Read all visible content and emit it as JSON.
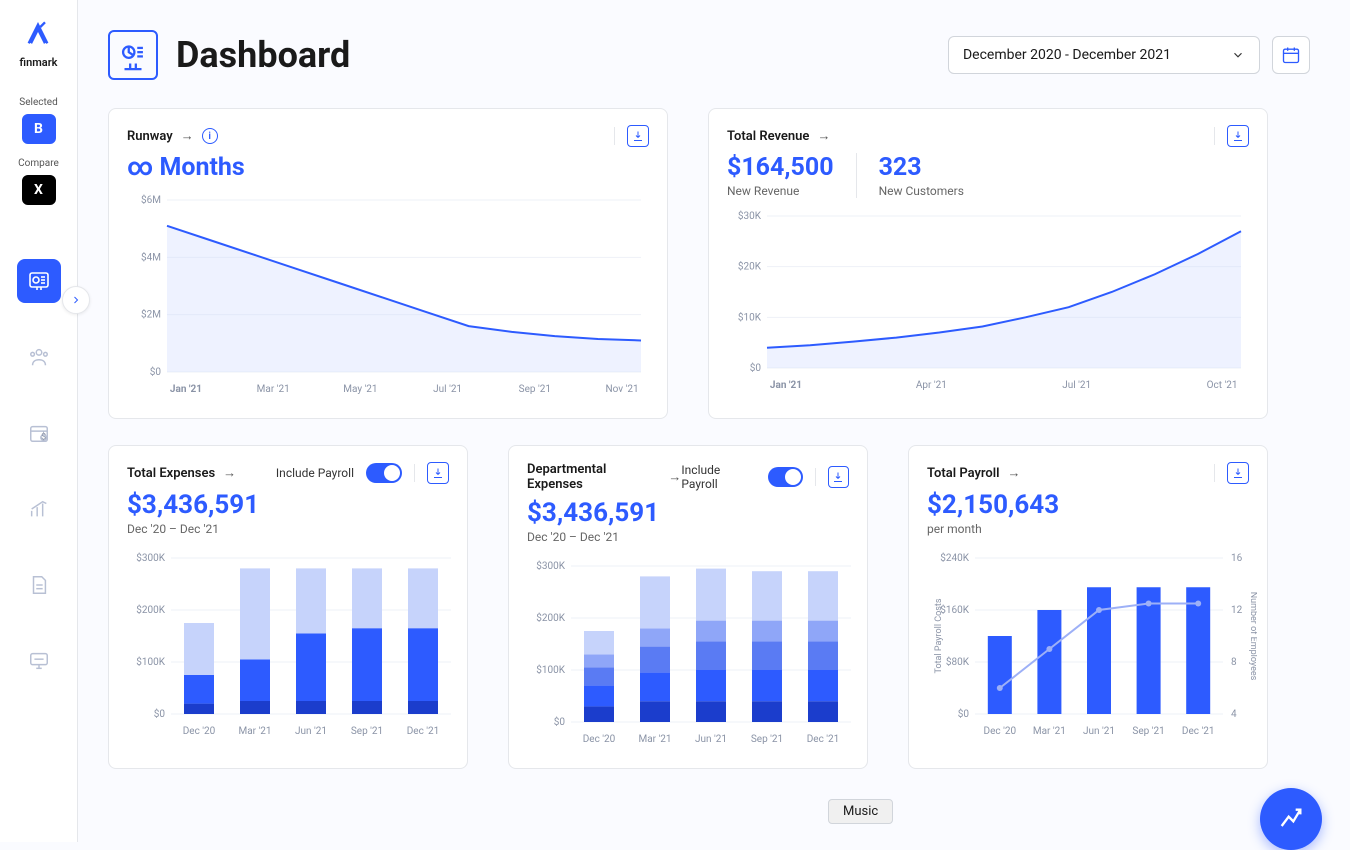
{
  "brand": "finmark",
  "sidebar": {
    "selected_label": "Selected",
    "selected_chip": "B",
    "compare_label": "Compare",
    "compare_chip": "X"
  },
  "header": {
    "title": "Dashboard",
    "date_range": "December 2020 - December 2021"
  },
  "colors": {
    "primary": "#2d5bff",
    "area_fill": "#cfdaff",
    "bar_light": "#c6d3fb",
    "bar_mid": "#7a97f7",
    "bar_dark": "#2d5bff",
    "bar_darker": "#1b3dcc",
    "grid": "#eef1f7",
    "axis_text": "#8a93a6"
  },
  "runway": {
    "title": "Runway",
    "metric": "∞ Months",
    "type": "area",
    "ylim": [
      0,
      6
    ],
    "yticks": [
      "$0",
      "$2M",
      "$4M",
      "$6M"
    ],
    "xticks": [
      "Jan '21",
      "Mar '21",
      "May '21",
      "Jul '21",
      "Sep '21",
      "Nov '21"
    ],
    "values": [
      5.1,
      4.6,
      4.1,
      3.6,
      3.1,
      2.6,
      2.1,
      1.6,
      1.4,
      1.25,
      1.15,
      1.1
    ]
  },
  "revenue": {
    "title": "Total Revenue",
    "new_revenue": "$164,500",
    "new_revenue_label": "New Revenue",
    "new_customers": "323",
    "new_customers_label": "New Customers",
    "type": "area",
    "ylim": [
      0,
      30
    ],
    "yticks": [
      "$0",
      "$10K",
      "$20K",
      "$30K"
    ],
    "xticks": [
      "Jan '21",
      "Apr '21",
      "Jul '21",
      "Oct '21"
    ],
    "values": [
      4,
      4.5,
      5.2,
      6,
      7,
      8.2,
      10,
      12,
      15,
      18.5,
      22.5,
      27
    ]
  },
  "expenses": {
    "title": "Total Expenses",
    "include_label": "Include Payroll",
    "metric": "$3,436,591",
    "subtitle": "Dec '20 – Dec '21",
    "type": "stacked-bar",
    "ylim": [
      0,
      300
    ],
    "yticks": [
      "$0",
      "$100K",
      "$200K",
      "$300K"
    ],
    "xticks": [
      "Dec '20",
      "Mar '21",
      "Jun '21",
      "Sep '21",
      "Dec '21"
    ],
    "stacks": [
      [
        20,
        55,
        100
      ],
      [
        25,
        80,
        175
      ],
      [
        25,
        130,
        125
      ],
      [
        25,
        140,
        115
      ],
      [
        25,
        140,
        115
      ]
    ],
    "stack_colors": [
      "#1b3dcc",
      "#2d5bff",
      "#c6d3fb"
    ]
  },
  "dept": {
    "title": "Departmental Expenses",
    "include_label": "Include Payroll",
    "metric": "$3,436,591",
    "subtitle": "Dec '20 – Dec '21",
    "type": "stacked-bar",
    "ylim": [
      0,
      300
    ],
    "yticks": [
      "$0",
      "$100K",
      "$200K",
      "$300K"
    ],
    "xticks": [
      "Dec '20",
      "Mar '21",
      "Jun '21",
      "Sep '21",
      "Dec '21"
    ],
    "stacks": [
      [
        30,
        40,
        35,
        25,
        45
      ],
      [
        40,
        55,
        50,
        35,
        100
      ],
      [
        40,
        60,
        55,
        40,
        100
      ],
      [
        40,
        60,
        55,
        40,
        95
      ],
      [
        40,
        60,
        55,
        40,
        95
      ]
    ],
    "stack_colors": [
      "#1b3dcc",
      "#2d5bff",
      "#5a7bf3",
      "#8fa6f8",
      "#c6d3fb"
    ]
  },
  "payroll": {
    "title": "Total Payroll",
    "metric": "$2,150,643",
    "subtitle": "per month",
    "type": "bar-line",
    "ylim": [
      0,
      240
    ],
    "yticks": [
      "$0",
      "$80K",
      "$160K",
      "$240K"
    ],
    "y2ticks": [
      "4",
      "8",
      "12",
      "16"
    ],
    "y1_label": "Total Payroll Costs",
    "y2_label": "Number of Employees",
    "xticks": [
      "Dec '20",
      "Mar '21",
      "Jun '21",
      "Sep '21",
      "Dec '21"
    ],
    "bars": [
      120,
      160,
      195,
      195,
      195
    ],
    "line": [
      6,
      9,
      12,
      12.5,
      12.5
    ]
  },
  "tooltip": "Music"
}
